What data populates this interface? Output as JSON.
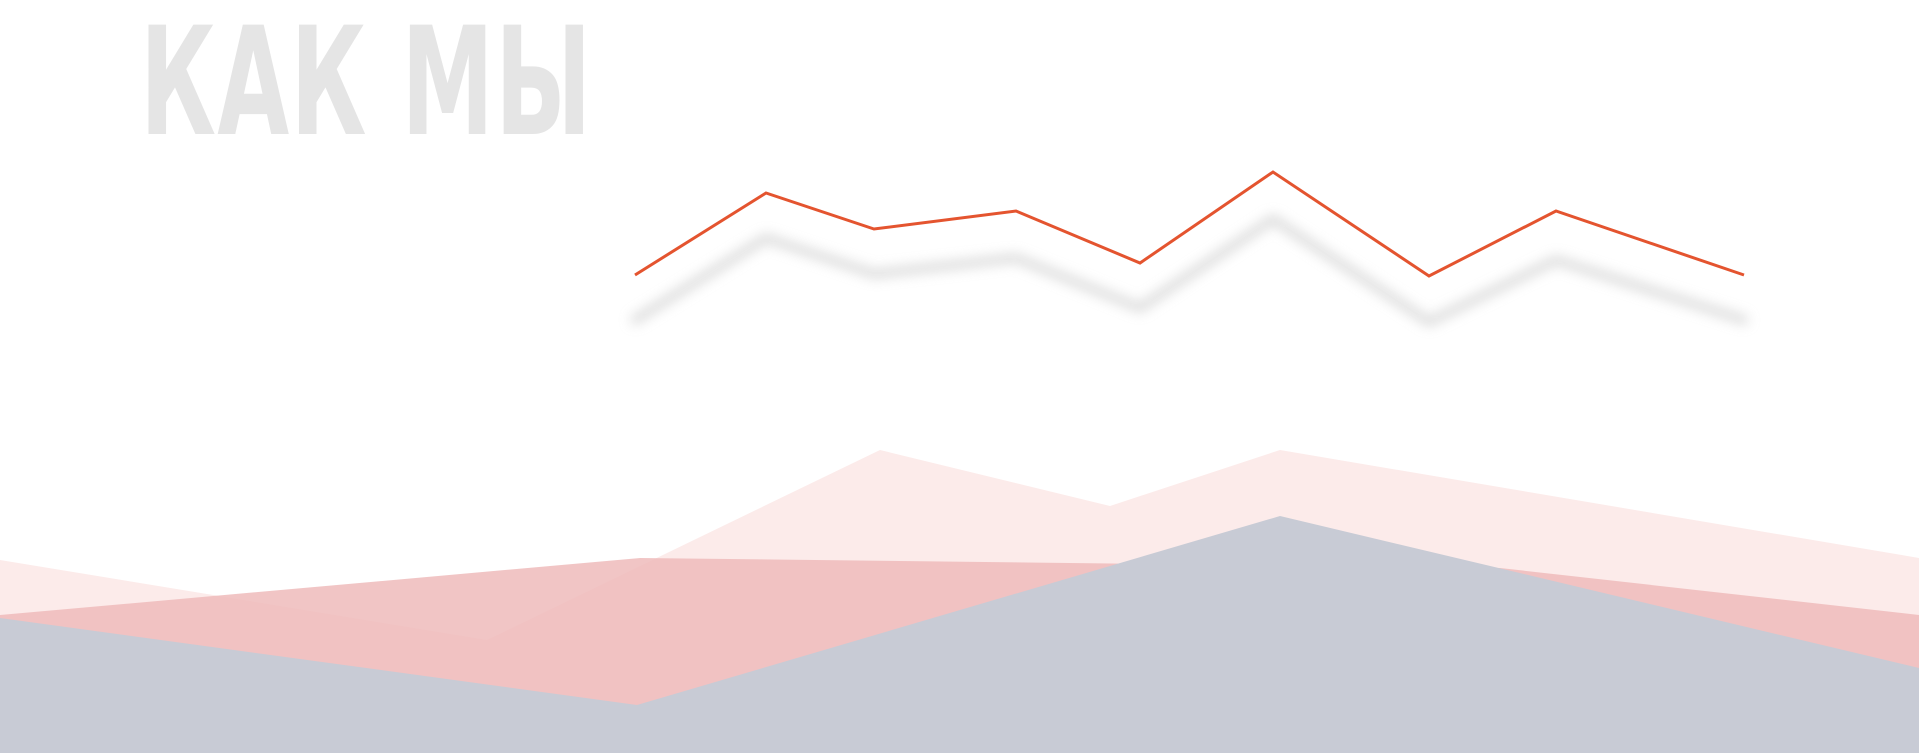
{
  "header": {
    "title": "КАК МЫ"
  },
  "colors": {
    "background": "#ffffff",
    "title": "#e5e5e5",
    "trend_line": "#e4542f",
    "trend_shadow": "#cfcfcf",
    "back_mountain": "#fcebea",
    "middle_mountain": "#efbbbb",
    "front_mountain": "#c8cbd5"
  },
  "decorations": {
    "trend_line": "zigzag-line",
    "mountains": [
      "back-mountain",
      "middle-mountain",
      "front-mountain"
    ]
  }
}
